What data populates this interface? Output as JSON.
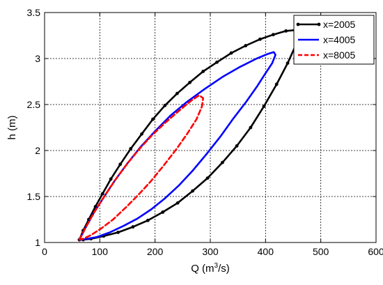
{
  "chart_data": {
    "type": "line",
    "title": "",
    "xlabel": "Q (m³/s)",
    "xlabel_base": "Q (m",
    "xlabel_sup": "3",
    "xlabel_tail": "/s)",
    "ylabel": "h (m)",
    "xlim": [
      0,
      600
    ],
    "ylim": [
      1,
      3.5
    ],
    "xticks": [
      0,
      100,
      200,
      300,
      400,
      500,
      600
    ],
    "yticks": [
      1,
      1.5,
      2,
      2.5,
      3,
      3.5
    ],
    "xtick_labels": [
      "0",
      "100",
      "200",
      "300",
      "400",
      "500",
      "600"
    ],
    "ytick_labels": [
      "1",
      "1.5",
      "2",
      "2.5",
      "3",
      "3.5"
    ],
    "grid": true,
    "legend_position": "top-right",
    "series": [
      {
        "name": "x=2005",
        "color": "#000000",
        "style": "solid",
        "markers": true,
        "x": [
          63,
          70,
          80,
          92,
          105,
          120,
          137,
          156,
          176,
          196,
          218,
          240,
          263,
          287,
          312,
          338,
          364,
          390,
          414,
          437,
          455,
          463,
          455,
          440,
          420,
          397,
          373,
          348,
          322,
          295,
          268,
          241,
          214,
          187,
          160,
          133,
          107,
          84,
          70,
          63
        ],
        "y": [
          1.03,
          1.13,
          1.25,
          1.39,
          1.53,
          1.69,
          1.85,
          2.02,
          2.18,
          2.34,
          2.49,
          2.62,
          2.74,
          2.86,
          2.96,
          3.06,
          3.14,
          3.21,
          3.26,
          3.3,
          3.31,
          3.28,
          3.15,
          2.95,
          2.72,
          2.48,
          2.25,
          2.05,
          1.87,
          1.7,
          1.56,
          1.43,
          1.33,
          1.24,
          1.17,
          1.11,
          1.07,
          1.04,
          1.03,
          1.03
        ]
      },
      {
        "name": "x=4005",
        "color": "#0000ff",
        "style": "solid",
        "markers": false,
        "x": [
          63,
          75,
          90,
          108,
          128,
          150,
          174,
          200,
          228,
          258,
          290,
          322,
          354,
          384,
          404,
          415,
          418,
          412,
          400,
          385,
          365,
          342,
          318,
          293,
          268,
          243,
          218,
          193,
          168,
          143,
          118,
          95,
          78,
          66,
          63
        ],
        "y": [
          1.03,
          1.17,
          1.33,
          1.5,
          1.68,
          1.86,
          2.04,
          2.21,
          2.38,
          2.53,
          2.67,
          2.8,
          2.91,
          3.0,
          3.05,
          3.07,
          3.04,
          2.95,
          2.84,
          2.7,
          2.53,
          2.35,
          2.15,
          1.96,
          1.78,
          1.62,
          1.48,
          1.36,
          1.26,
          1.18,
          1.11,
          1.06,
          1.04,
          1.03,
          1.03
        ]
      },
      {
        "name": "x=8005",
        "color": "#ff0000",
        "style": "dashed",
        "markers": false,
        "x": [
          63,
          75,
          90,
          108,
          128,
          150,
          172,
          195,
          220,
          245,
          265,
          280,
          287,
          285,
          275,
          258,
          238,
          216,
          193,
          170,
          147,
          124,
          102,
          84,
          70,
          63
        ],
        "y": [
          1.03,
          1.17,
          1.33,
          1.5,
          1.68,
          1.86,
          2.02,
          2.17,
          2.31,
          2.44,
          2.54,
          2.6,
          2.57,
          2.48,
          2.34,
          2.18,
          2.01,
          1.84,
          1.67,
          1.52,
          1.38,
          1.25,
          1.15,
          1.08,
          1.04,
          1.03
        ]
      }
    ]
  }
}
